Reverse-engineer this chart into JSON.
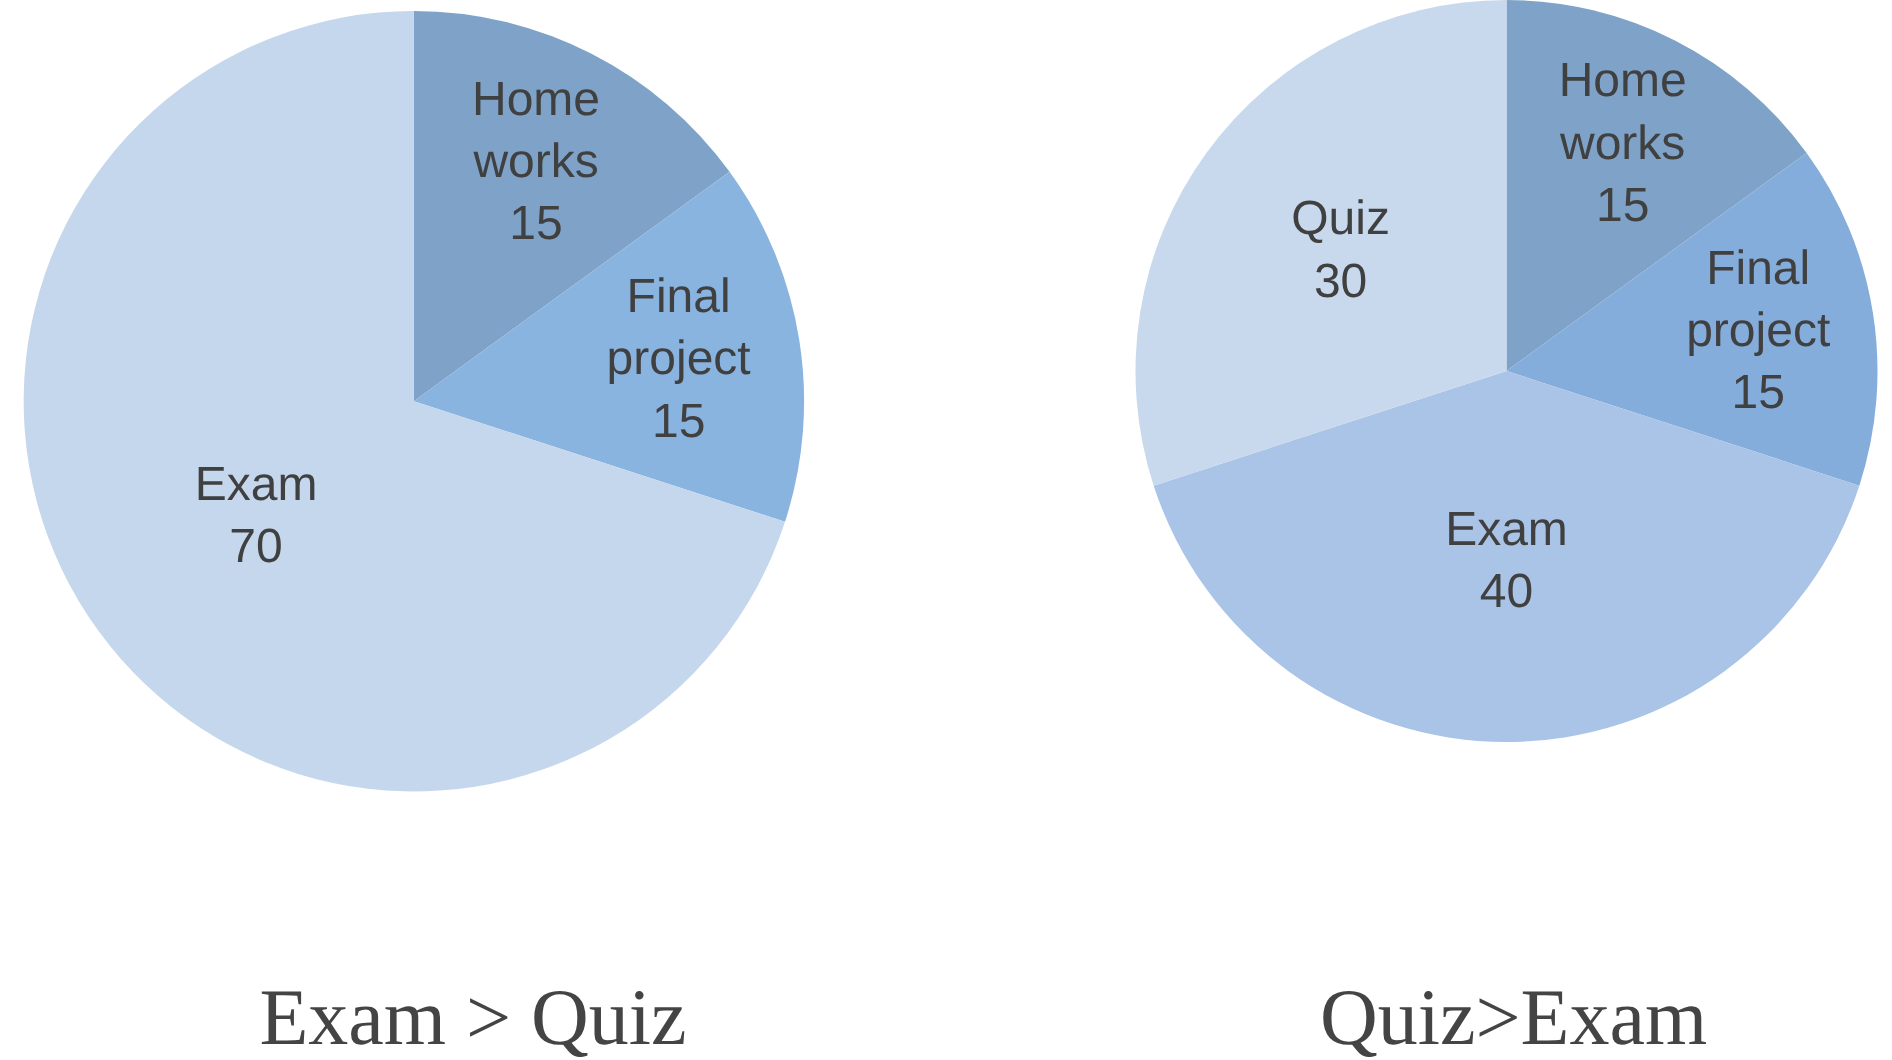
{
  "chart_data": [
    {
      "type": "pie",
      "title": "Exam > Quiz",
      "categories": [
        "Home works",
        "Final project",
        "Exam"
      ],
      "values": [
        15,
        15,
        70
      ],
      "colors": [
        "#7fa3c8",
        "#8ab4e0",
        "#c5d7ed"
      ],
      "data_labels": true,
      "legend": false
    },
    {
      "type": "pie",
      "title": "Quiz>Exam",
      "categories": [
        "Home works",
        "Final project",
        "Exam",
        "Quiz"
      ],
      "values": [
        15,
        15,
        40,
        30
      ],
      "colors": [
        "#7fa3c8",
        "#85addb",
        "#a9c4e6",
        "#c8d9ee"
      ],
      "data_labels": true,
      "legend": false
    }
  ]
}
